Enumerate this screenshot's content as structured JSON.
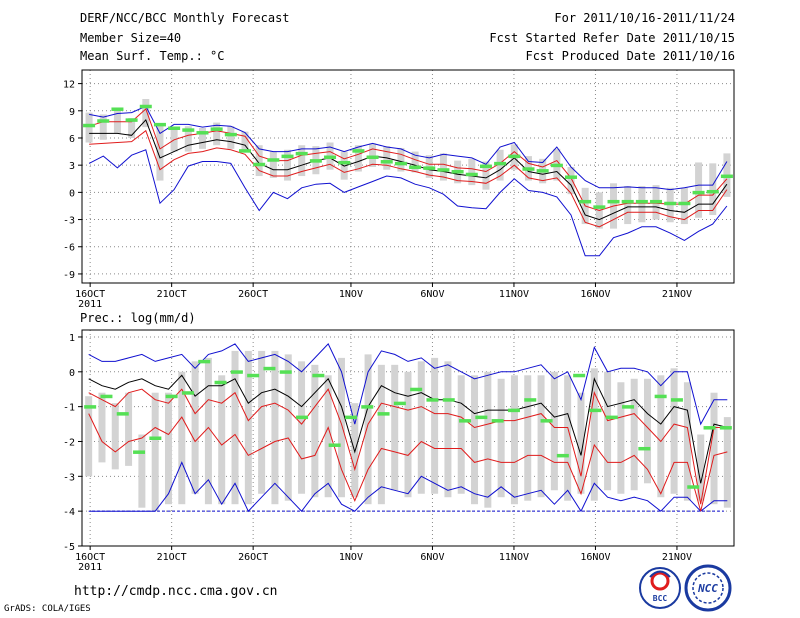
{
  "header": {
    "title": "DERF/NCC/BCC Monthly Forecast",
    "member_size": "Member Size=40",
    "variable": "Mean Surf. Temp.: °C",
    "period": "For 2011/10/16-2011/11/24",
    "fcst_started": "Fcst Started Refer Date 2011/10/15",
    "fcst_produced": "Fcst Produced Date 2011/10/16"
  },
  "footer": {
    "url": "http://cmdp.ncc.cma.gov.cn",
    "credit": "GrADS: COLA/IGES",
    "logo_bcc": "BCC",
    "logo_ncc": "NCC"
  },
  "colors": {
    "box": "#d3d3d3",
    "mean": "#000000",
    "inner": "#e01c1c",
    "outer": "#1010d0",
    "obs": "#55e055",
    "grid": "#8a8a8a"
  },
  "chart_data": [
    {
      "type": "line",
      "title": "Mean Surf. Temp.: °C",
      "xlabel": "",
      "ylabel": "°C",
      "x_tick_labels": [
        "16OCT",
        "21OCT",
        "26OCT",
        "1NOV",
        "6NOV",
        "11NOV",
        "16NOV",
        "21NOV"
      ],
      "x_tick_days": [
        1,
        6,
        11,
        17,
        22,
        27,
        32,
        37
      ],
      "x_year_label": "2011",
      "x_range": [
        0.5,
        40.5
      ],
      "yticks": [
        12,
        9,
        6,
        3,
        0,
        -3,
        -6,
        -9
      ],
      "ylim": [
        -10,
        13.5
      ],
      "series": [
        {
          "name": "ensemble mean",
          "values": [
            6.5,
            6.5,
            6.5,
            6.3,
            8.0,
            3.8,
            4.5,
            5.2,
            5.5,
            5.8,
            5.6,
            5.2,
            3.2,
            2.5,
            2.5,
            3.0,
            3.5,
            3.8,
            2.9,
            3.4,
            4.0,
            3.8,
            3.4,
            3.0,
            2.5,
            2.3,
            2.0,
            1.8,
            1.6,
            2.5,
            3.8,
            2.3,
            2.0,
            2.3,
            0.8,
            -2.5,
            -3.0,
            -2.3,
            -1.6,
            -1.6,
            -1.6,
            -2.0,
            -2.2,
            -1.3,
            -1.3,
            0.9
          ]
        },
        {
          "name": "upper spread",
          "values": [
            8.6,
            8.3,
            8.7,
            8.8,
            9.5,
            6.5,
            7.5,
            7.5,
            7.2,
            7.4,
            7.3,
            6.6,
            4.8,
            4.5,
            4.5,
            4.8,
            4.8,
            5.0,
            4.5,
            5.0,
            5.4,
            5.0,
            4.8,
            4.1,
            3.8,
            4.2,
            4.0,
            3.8,
            3.1,
            5.0,
            5.5,
            3.4,
            3.3,
            5.0,
            2.8,
            1.3,
            0.5,
            0.5,
            0.6,
            0.5,
            0.5,
            0.3,
            0.5,
            0.8,
            0.8,
            3.4
          ]
        },
        {
          "name": "upper quartile",
          "values": [
            7.3,
            7.8,
            7.8,
            7.8,
            9.2,
            4.8,
            5.8,
            6.3,
            6.5,
            6.8,
            6.5,
            6.2,
            4.0,
            3.5,
            3.5,
            4.1,
            4.3,
            4.5,
            3.7,
            4.2,
            4.8,
            4.5,
            4.2,
            3.6,
            3.1,
            3.1,
            2.7,
            2.6,
            2.3,
            3.2,
            4.5,
            3.2,
            2.8,
            3.5,
            1.6,
            -1.5,
            -2.0,
            -1.5,
            -1.2,
            -1.2,
            -1.2,
            -1.3,
            -1.3,
            -0.3,
            -0.3,
            1.5
          ]
        },
        {
          "name": "lower quartile",
          "values": [
            5.3,
            5.4,
            5.5,
            5.6,
            6.8,
            2.5,
            3.6,
            4.3,
            4.5,
            4.9,
            4.7,
            4.2,
            2.4,
            1.8,
            1.8,
            2.3,
            2.7,
            3.1,
            2.2,
            2.6,
            3.1,
            3.0,
            2.6,
            2.3,
            1.9,
            1.7,
            1.3,
            1.2,
            1.0,
            1.8,
            3.0,
            1.6,
            1.3,
            1.6,
            -0.1,
            -3.3,
            -3.8,
            -3.0,
            -2.2,
            -2.2,
            -2.2,
            -2.7,
            -3.0,
            -2.0,
            -2.0,
            0.3
          ]
        },
        {
          "name": "lower spread",
          "values": [
            3.2,
            4.0,
            2.7,
            4.1,
            4.7,
            -1.2,
            0.3,
            2.9,
            3.4,
            3.4,
            3.2,
            0.5,
            -2.0,
            0.0,
            -0.7,
            0.5,
            0.9,
            1.0,
            0.0,
            0.6,
            1.2,
            1.8,
            1.6,
            0.9,
            0.5,
            -0.2,
            -1.5,
            -1.7,
            -1.8,
            0.0,
            1.5,
            0.2,
            0.0,
            -0.5,
            -2.5,
            -7.0,
            -7.0,
            -5.0,
            -4.5,
            -3.8,
            -3.8,
            -4.5,
            -5.3,
            -4.3,
            -3.5,
            -1.5
          ]
        },
        {
          "name": "box upper",
          "values": [
            8.8,
            8.6,
            9.2,
            8.2,
            10.3,
            7.5,
            7.2,
            7.3,
            7.1,
            7.7,
            7.3,
            6.7,
            5.2,
            4.5,
            4.7,
            5.2,
            5.1,
            5.5,
            4.5,
            5.2,
            5.4,
            5.1,
            4.9,
            4.5,
            4.1,
            4.3,
            3.5,
            3.7,
            3.4,
            4.7,
            5.3,
            4.0,
            3.7,
            4.8,
            2.8,
            0.5,
            0.0,
            1.0,
            0.7,
            0.7,
            0.8,
            0.5,
            0.5,
            3.3,
            3.2,
            4.3
          ]
        },
        {
          "name": "box lower",
          "values": [
            5.5,
            5.8,
            6.5,
            6.0,
            7.2,
            1.3,
            4.5,
            4.5,
            4.8,
            5.2,
            4.8,
            4.6,
            1.8,
            1.6,
            1.3,
            1.8,
            2.0,
            2.5,
            1.4,
            2.3,
            2.8,
            2.5,
            2.3,
            2.2,
            1.6,
            1.3,
            1.0,
            0.8,
            0.3,
            1.3,
            2.5,
            1.3,
            1.0,
            1.3,
            -0.2,
            -3.5,
            -4.0,
            -4.0,
            -3.5,
            -3.3,
            -3.0,
            -3.3,
            -3.5,
            -2.8,
            -2.5,
            -0.5
          ]
        },
        {
          "name": "observed",
          "values": [
            7.4,
            7.9,
            9.2,
            8.0,
            9.5,
            7.5,
            7.1,
            6.9,
            6.6,
            7.0,
            6.4,
            4.6,
            3.1,
            3.6,
            4.0,
            4.3,
            3.5,
            3.9,
            3.3,
            4.6,
            3.9,
            3.4,
            3.2,
            2.8,
            2.7,
            2.5,
            2.3,
            2.0,
            2.9,
            3.2,
            4.0,
            2.6,
            2.4,
            3.0,
            1.7,
            -1.0,
            -1.6,
            -1.0,
            -1.0,
            -1.0,
            -1.0,
            -1.2,
            -1.2,
            0.0,
            0.1,
            1.8
          ]
        }
      ]
    },
    {
      "type": "line",
      "title": "Prec.: log(mm/d)",
      "xlabel": "",
      "ylabel": "log(mm/d)",
      "x_tick_labels": [
        "16OCT",
        "21OCT",
        "26OCT",
        "1NOV",
        "6NOV",
        "11NOV",
        "16NOV",
        "21NOV"
      ],
      "x_tick_days": [
        1,
        6,
        11,
        17,
        22,
        27,
        32,
        37
      ],
      "x_year_label": "2011",
      "x_range": [
        0.5,
        40.5
      ],
      "yticks": [
        1,
        0,
        -1,
        -2,
        -3,
        -4,
        -5
      ],
      "ylim": [
        -5,
        1.2
      ],
      "series": [
        {
          "name": "ensemble mean",
          "values": [
            -0.2,
            -0.4,
            -0.5,
            -0.3,
            -0.2,
            -0.4,
            -0.5,
            -0.1,
            -0.7,
            -0.4,
            -0.4,
            -0.2,
            -0.9,
            -0.6,
            -0.5,
            -0.7,
            -1.0,
            -0.6,
            -0.2,
            -1.0,
            -2.3,
            -1.0,
            -0.4,
            -0.6,
            -0.7,
            -0.6,
            -0.8,
            -0.8,
            -0.9,
            -1.2,
            -1.1,
            -1.1,
            -1.1,
            -1.0,
            -0.9,
            -1.3,
            -1.2,
            -2.4,
            -0.2,
            -1.0,
            -0.9,
            -0.8,
            -1.2,
            -1.5,
            -1.0,
            -1.1,
            -3.2,
            -1.5,
            -1.6
          ]
        },
        {
          "name": "upper spread",
          "values": [
            0.5,
            0.3,
            0.3,
            0.4,
            0.5,
            0.3,
            0.4,
            0.5,
            0.1,
            0.5,
            0.6,
            0.8,
            0.3,
            0.4,
            0.5,
            0.3,
            0.0,
            0.4,
            0.8,
            0.0,
            -1.5,
            0.0,
            0.6,
            0.5,
            0.3,
            0.4,
            0.1,
            0.2,
            0.0,
            -0.2,
            -0.1,
            0.0,
            0.0,
            0.1,
            0.2,
            -0.2,
            0.0,
            -0.8,
            0.7,
            0.0,
            0.1,
            0.1,
            0.0,
            -0.4,
            0.0,
            0.0,
            -1.5,
            -0.8,
            -0.8
          ]
        },
        {
          "name": "upper quartile",
          "values": [
            -0.6,
            -0.8,
            -1.0,
            -0.6,
            -0.5,
            -0.8,
            -0.9,
            -0.5,
            -1.2,
            -0.8,
            -0.9,
            -0.6,
            -1.4,
            -1.0,
            -0.9,
            -1.1,
            -1.5,
            -1.0,
            -0.5,
            -1.5,
            -2.8,
            -1.5,
            -0.9,
            -1.0,
            -1.1,
            -1.0,
            -1.2,
            -1.2,
            -1.3,
            -1.6,
            -1.5,
            -1.4,
            -1.4,
            -1.3,
            -1.2,
            -1.6,
            -1.6,
            -3.0,
            -0.6,
            -1.4,
            -1.3,
            -1.2,
            -1.6,
            -2.0,
            -1.5,
            -1.6,
            -3.8,
            -1.6,
            -1.6
          ]
        },
        {
          "name": "lower quartile",
          "values": [
            -1.2,
            -2.0,
            -2.3,
            -2.0,
            -1.9,
            -1.6,
            -1.8,
            -1.3,
            -2.0,
            -1.6,
            -2.1,
            -1.8,
            -2.4,
            -2.2,
            -2.0,
            -1.9,
            -2.5,
            -2.4,
            -1.6,
            -2.8,
            -3.7,
            -2.8,
            -2.2,
            -2.3,
            -2.4,
            -2.0,
            -2.2,
            -2.2,
            -2.2,
            -2.6,
            -2.5,
            -2.6,
            -2.6,
            -2.4,
            -2.4,
            -2.6,
            -2.6,
            -3.5,
            -2.1,
            -2.6,
            -2.6,
            -2.4,
            -2.8,
            -3.5,
            -2.6,
            -2.6,
            -4.0,
            -2.4,
            -2.3
          ]
        },
        {
          "name": "lower spread",
          "values": [
            -4.0,
            -4.0,
            -4.0,
            -4.0,
            -4.0,
            -4.0,
            -3.5,
            -2.6,
            -3.5,
            -3.1,
            -3.8,
            -3.2,
            -4.0,
            -3.6,
            -3.2,
            -3.6,
            -4.0,
            -3.5,
            -3.2,
            -3.8,
            -4.0,
            -3.6,
            -3.3,
            -3.4,
            -3.5,
            -3.0,
            -3.2,
            -3.4,
            -3.3,
            -3.5,
            -3.6,
            -3.3,
            -3.6,
            -3.5,
            -3.4,
            -3.8,
            -3.4,
            -4.0,
            -3.2,
            -3.6,
            -3.7,
            -3.6,
            -3.7,
            -4.0,
            -3.6,
            -3.6,
            -4.0,
            -3.7,
            -3.7
          ]
        },
        {
          "name": "box upper",
          "values": [
            -0.7,
            -0.6,
            -0.9,
            -0.6,
            -1.8,
            -0.6,
            -0.6,
            0.0,
            0.3,
            0.4,
            -0.1,
            0.6,
            0.6,
            0.6,
            0.6,
            0.5,
            0.3,
            0.2,
            -0.1,
            0.4,
            -0.9,
            0.5,
            0.2,
            0.2,
            0.0,
            0.3,
            0.4,
            0.3,
            -0.1,
            -0.1,
            0.0,
            -0.2,
            -0.1,
            -0.1,
            -0.1,
            0.0,
            -0.1,
            -0.6,
            0.1,
            0.0,
            -0.3,
            -0.2,
            -0.2,
            -0.1,
            0.1,
            -0.3,
            -1.8,
            -0.6,
            -1.3
          ]
        },
        {
          "name": "box lower",
          "values": [
            -3.0,
            -2.6,
            -2.8,
            -2.7,
            -3.9,
            -4.0,
            -3.8,
            -3.8,
            -3.5,
            -3.8,
            -3.8,
            -3.8,
            -3.8,
            -3.5,
            -3.8,
            -3.7,
            -3.5,
            -3.6,
            -3.6,
            -3.6,
            -3.6,
            -3.8,
            -3.8,
            -3.4,
            -3.6,
            -3.5,
            -3.5,
            -3.6,
            -3.5,
            -3.8,
            -3.9,
            -3.6,
            -3.8,
            -3.7,
            -3.6,
            -3.4,
            -3.7,
            -3.5,
            -3.7,
            -3.4,
            -3.5,
            -3.4,
            -3.2,
            -3.6,
            -3.5,
            -3.7,
            -3.7,
            -3.8,
            -3.9
          ]
        },
        {
          "name": "observed",
          "values": [
            -1.0,
            -0.7,
            -1.2,
            -2.3,
            -1.9,
            -0.7,
            -0.6,
            0.3,
            -0.3,
            0.0,
            -0.1,
            0.1,
            0.0,
            -1.3,
            -0.1,
            -2.1,
            -1.3,
            -1.0,
            -1.2,
            -0.9,
            -0.5,
            -0.8,
            -0.8,
            -1.4,
            -1.3,
            -1.4,
            -1.1,
            -0.8,
            -1.4,
            -2.4,
            -0.1,
            -1.1,
            -1.3,
            -1.0,
            -2.2,
            -0.7,
            -0.8,
            -3.3,
            -1.6,
            -1.6
          ]
        }
      ]
    }
  ]
}
